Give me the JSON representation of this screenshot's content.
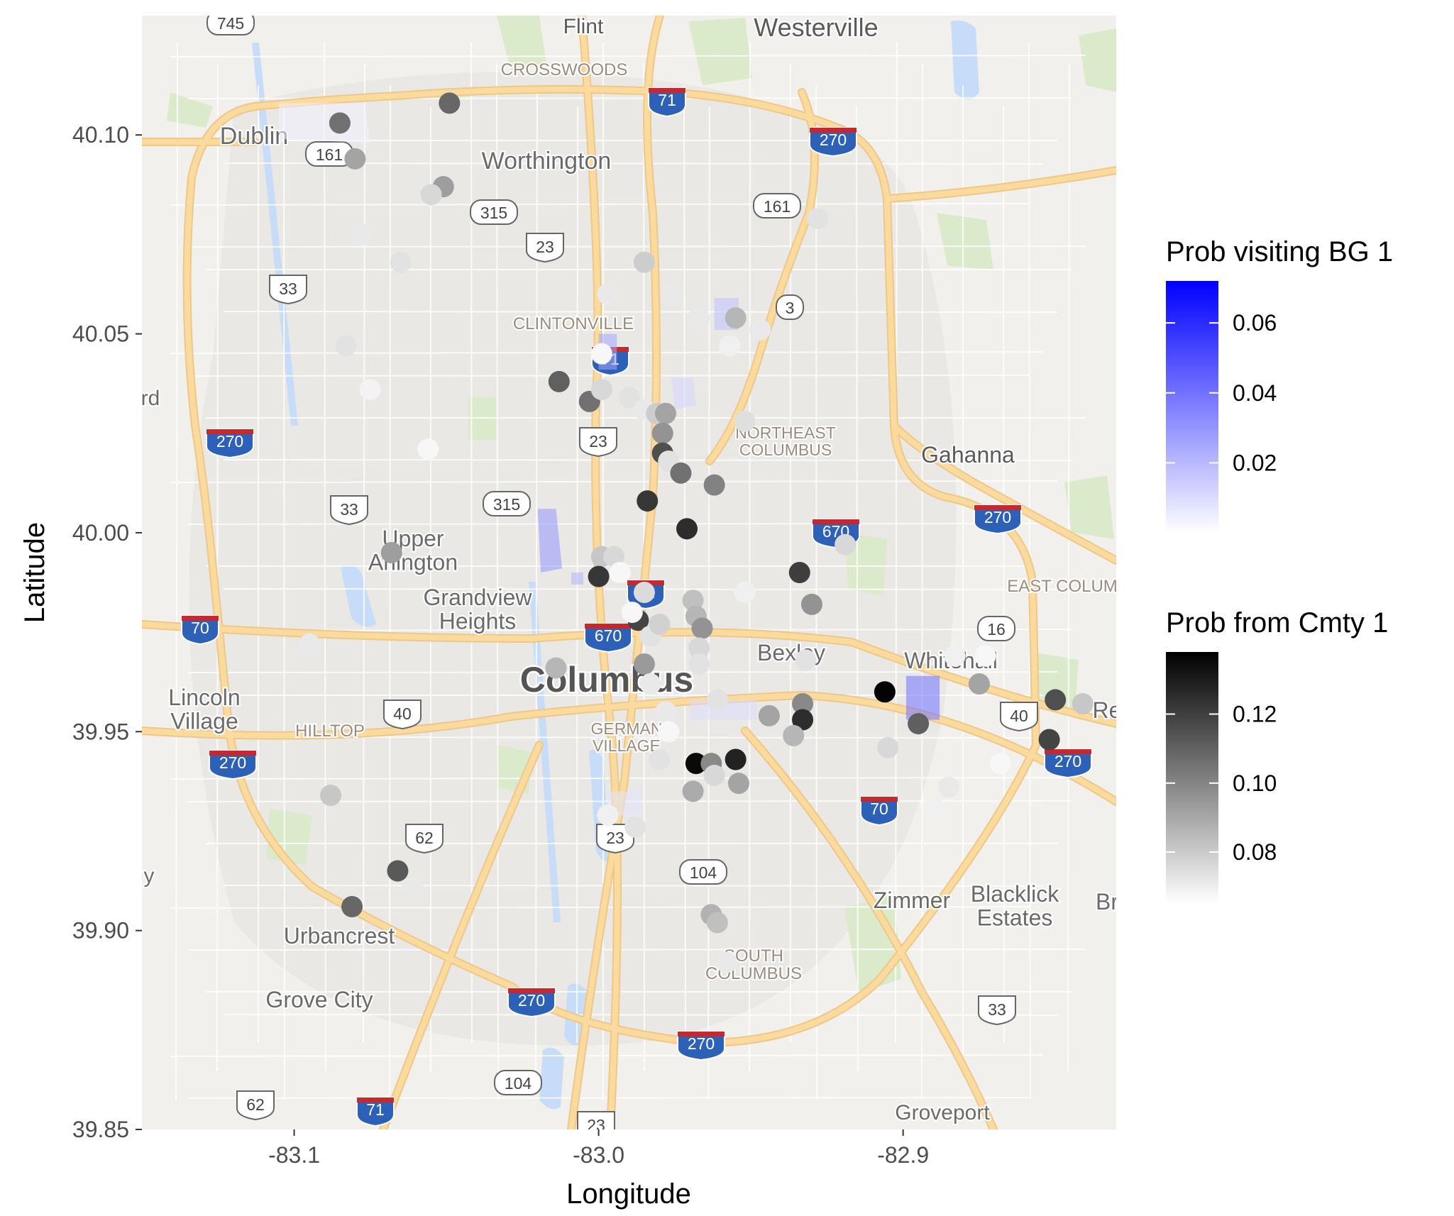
{
  "chart_data": {
    "type": "scatter",
    "basemap": "Google road map of Columbus, Ohio",
    "xlabel": "Longitude",
    "ylabel": "Latitude",
    "xlim": [
      -83.15,
      -82.83
    ],
    "ylim": [
      39.85,
      40.13
    ],
    "x_ticks": [
      {
        "value": -83.1,
        "label": "-83.1"
      },
      {
        "value": -83.0,
        "label": "-83.0"
      },
      {
        "value": -82.9,
        "label": "-82.9"
      }
    ],
    "y_ticks": [
      {
        "value": 39.85,
        "label": "39.85"
      },
      {
        "value": 39.9,
        "label": "39.90"
      },
      {
        "value": 39.95,
        "label": "39.95"
      },
      {
        "value": 40.0,
        "label": "40.00"
      },
      {
        "value": 40.05,
        "label": "40.05"
      },
      {
        "value": 40.1,
        "label": "40.10"
      }
    ],
    "grid": false,
    "legends": [
      {
        "title": "Prob visiting BG 1",
        "low_color": "#ffffff",
        "high_color": "#0000ff",
        "range": [
          0.0,
          0.072
        ],
        "ticks": [
          {
            "value": 0.02,
            "label": "0.02"
          },
          {
            "value": 0.04,
            "label": "0.04"
          },
          {
            "value": 0.06,
            "label": "0.06"
          }
        ]
      },
      {
        "title": "Prob from Cmty 1",
        "low_color": "#ffffff",
        "high_color": "#000000",
        "range": [
          0.065,
          0.138
        ],
        "ticks": [
          {
            "value": 0.08,
            "label": "0.08"
          },
          {
            "value": 0.1,
            "label": "0.10"
          },
          {
            "value": 0.12,
            "label": "0.12"
          }
        ]
      }
    ],
    "block_groups": [
      {
        "name": "bg-near-dublin",
        "lon": -83.085,
        "lat": 40.104,
        "prob": 0.004
      },
      {
        "name": "bg-west-olentangy",
        "lon": -83.016,
        "lat": 39.995,
        "prob": 0.03
      },
      {
        "name": "bg-west-olentangy-small",
        "lon": -83.007,
        "lat": 39.989,
        "prob": 0.022
      },
      {
        "name": "bg-clintonville",
        "lon": -82.997,
        "lat": 40.046,
        "prob": 0.025
      },
      {
        "name": "bg-north",
        "lon": -82.972,
        "lat": 40.034,
        "prob": 0.012
      },
      {
        "name": "bg-northeast",
        "lon": -82.958,
        "lat": 40.055,
        "prob": 0.018
      },
      {
        "name": "bg-whitehall",
        "lon": -82.893,
        "lat": 39.959,
        "prob": 0.04
      },
      {
        "name": "bg-downtown-east",
        "lon": -82.958,
        "lat": 39.956,
        "prob": 0.01
      },
      {
        "name": "bg-south-german",
        "lon": -82.991,
        "lat": 39.932,
        "prob": 0.008
      }
    ],
    "points": [
      {
        "lon": -83.085,
        "lat": 40.103,
        "prob": 0.105
      },
      {
        "lon": -83.08,
        "lat": 40.094,
        "prob": 0.09
      },
      {
        "lon": -83.049,
        "lat": 40.108,
        "prob": 0.108
      },
      {
        "lon": -83.051,
        "lat": 40.087,
        "prob": 0.092
      },
      {
        "lon": -83.055,
        "lat": 40.085,
        "prob": 0.075
      },
      {
        "lon": -82.997,
        "lat": 40.06,
        "prob": 0.07
      },
      {
        "lon": -82.985,
        "lat": 40.068,
        "prob": 0.078
      },
      {
        "lon": -82.967,
        "lat": 40.054,
        "prob": 0.07
      },
      {
        "lon": -82.955,
        "lat": 40.054,
        "prob": 0.085
      },
      {
        "lon": -82.999,
        "lat": 40.045,
        "prob": 0.066
      },
      {
        "lon": -83.013,
        "lat": 40.038,
        "prob": 0.11
      },
      {
        "lon": -83.003,
        "lat": 40.033,
        "prob": 0.105
      },
      {
        "lon": -82.999,
        "lat": 40.036,
        "prob": 0.075
      },
      {
        "lon": -82.99,
        "lat": 40.034,
        "prob": 0.072
      },
      {
        "lon": -82.985,
        "lat": 40.031,
        "prob": 0.07
      },
      {
        "lon": -82.981,
        "lat": 40.03,
        "prob": 0.078
      },
      {
        "lon": -82.978,
        "lat": 40.03,
        "prob": 0.09
      },
      {
        "lon": -82.979,
        "lat": 40.025,
        "prob": 0.095
      },
      {
        "lon": -82.979,
        "lat": 40.02,
        "prob": 0.115
      },
      {
        "lon": -82.977,
        "lat": 40.018,
        "prob": 0.072
      },
      {
        "lon": -82.973,
        "lat": 40.015,
        "prob": 0.105
      },
      {
        "lon": -82.962,
        "lat": 40.012,
        "prob": 0.1
      },
      {
        "lon": -82.984,
        "lat": 40.008,
        "prob": 0.122
      },
      {
        "lon": -82.971,
        "lat": 40.001,
        "prob": 0.125
      },
      {
        "lon": -82.952,
        "lat": 40.028,
        "prob": 0.073
      },
      {
        "lon": -83.078,
        "lat": 40.075,
        "prob": 0.07
      },
      {
        "lon": -83.065,
        "lat": 40.068,
        "prob": 0.072
      },
      {
        "lon": -83.083,
        "lat": 40.047,
        "prob": 0.072
      },
      {
        "lon": -83.075,
        "lat": 40.036,
        "prob": 0.067
      },
      {
        "lon": -82.976,
        "lat": 40.06,
        "prob": 0.07
      },
      {
        "lon": -82.928,
        "lat": 40.079,
        "prob": 0.072
      },
      {
        "lon": -82.947,
        "lat": 40.051,
        "prob": 0.07
      },
      {
        "lon": -82.957,
        "lat": 40.047,
        "prob": 0.068
      },
      {
        "lon": -82.999,
        "lat": 39.994,
        "prob": 0.08
      },
      {
        "lon": -82.995,
        "lat": 39.994,
        "prob": 0.075
      },
      {
        "lon": -83.0,
        "lat": 39.989,
        "prob": 0.122
      },
      {
        "lon": -82.993,
        "lat": 39.99,
        "prob": 0.066
      },
      {
        "lon": -82.985,
        "lat": 39.985,
        "prob": 0.074
      },
      {
        "lon": -82.987,
        "lat": 39.978,
        "prob": 0.118
      },
      {
        "lon": -82.989,
        "lat": 39.98,
        "prob": 0.066
      },
      {
        "lon": -82.983,
        "lat": 39.974,
        "prob": 0.072
      },
      {
        "lon": -82.98,
        "lat": 39.977,
        "prob": 0.077
      },
      {
        "lon": -82.969,
        "lat": 39.983,
        "prob": 0.082
      },
      {
        "lon": -82.968,
        "lat": 39.979,
        "prob": 0.085
      },
      {
        "lon": -82.966,
        "lat": 39.976,
        "prob": 0.095
      },
      {
        "lon": -82.967,
        "lat": 39.971,
        "prob": 0.075
      },
      {
        "lon": -82.967,
        "lat": 39.967,
        "prob": 0.072
      },
      {
        "lon": -82.985,
        "lat": 39.967,
        "prob": 0.093
      },
      {
        "lon": -83.014,
        "lat": 39.966,
        "prob": 0.085
      },
      {
        "lon": -82.952,
        "lat": 39.985,
        "prob": 0.068
      },
      {
        "lon": -82.934,
        "lat": 39.99,
        "prob": 0.12
      },
      {
        "lon": -82.93,
        "lat": 39.982,
        "prob": 0.095
      },
      {
        "lon": -82.919,
        "lat": 39.997,
        "prob": 0.075
      },
      {
        "lon": -82.983,
        "lat": 39.962,
        "prob": 0.07
      },
      {
        "lon": -82.978,
        "lat": 39.955,
        "prob": 0.07
      },
      {
        "lon": -82.977,
        "lat": 39.95,
        "prob": 0.066
      },
      {
        "lon": -82.961,
        "lat": 39.958,
        "prob": 0.072
      },
      {
        "lon": -82.944,
        "lat": 39.954,
        "prob": 0.09
      },
      {
        "lon": -82.933,
        "lat": 39.957,
        "prob": 0.098
      },
      {
        "lon": -82.933,
        "lat": 39.953,
        "prob": 0.125
      },
      {
        "lon": -82.936,
        "lat": 39.949,
        "prob": 0.085
      },
      {
        "lon": -82.932,
        "lat": 39.968,
        "prob": 0.072
      },
      {
        "lon": -82.906,
        "lat": 39.96,
        "prob": 0.137
      },
      {
        "lon": -82.895,
        "lat": 39.952,
        "prob": 0.11
      },
      {
        "lon": -82.905,
        "lat": 39.946,
        "prob": 0.075
      },
      {
        "lon": -82.883,
        "lat": 39.969,
        "prob": 0.068
      },
      {
        "lon": -82.875,
        "lat": 39.962,
        "prob": 0.09
      },
      {
        "lon": -82.873,
        "lat": 39.969,
        "prob": 0.066
      },
      {
        "lon": -82.85,
        "lat": 39.958,
        "prob": 0.115
      },
      {
        "lon": -82.841,
        "lat": 39.957,
        "prob": 0.08
      },
      {
        "lon": -82.852,
        "lat": 39.948,
        "prob": 0.118
      },
      {
        "lon": -82.868,
        "lat": 39.942,
        "prob": 0.066
      },
      {
        "lon": -82.885,
        "lat": 39.936,
        "prob": 0.07
      },
      {
        "lon": -82.89,
        "lat": 39.931,
        "prob": 0.068
      },
      {
        "lon": -82.968,
        "lat": 39.942,
        "prob": 0.135
      },
      {
        "lon": -82.963,
        "lat": 39.942,
        "prob": 0.098
      },
      {
        "lon": -82.955,
        "lat": 39.943,
        "prob": 0.128
      },
      {
        "lon": -82.962,
        "lat": 39.939,
        "prob": 0.075
      },
      {
        "lon": -82.969,
        "lat": 39.935,
        "prob": 0.088
      },
      {
        "lon": -82.954,
        "lat": 39.937,
        "prob": 0.09
      },
      {
        "lon": -82.963,
        "lat": 39.904,
        "prob": 0.086
      },
      {
        "lon": -82.961,
        "lat": 39.902,
        "prob": 0.082
      },
      {
        "lon": -82.958,
        "lat": 39.892,
        "prob": 0.07
      },
      {
        "lon": -83.095,
        "lat": 39.972,
        "prob": 0.07
      },
      {
        "lon": -83.088,
        "lat": 39.934,
        "prob": 0.08
      },
      {
        "lon": -83.066,
        "lat": 39.915,
        "prob": 0.112
      },
      {
        "lon": -83.061,
        "lat": 39.911,
        "prob": 0.07
      },
      {
        "lon": -83.081,
        "lat": 39.906,
        "prob": 0.108
      },
      {
        "lon": -83.068,
        "lat": 39.995,
        "prob": 0.092
      },
      {
        "lon": -83.056,
        "lat": 40.021,
        "prob": 0.066
      },
      {
        "lon": -82.988,
        "lat": 39.926,
        "prob": 0.072
      },
      {
        "lon": -82.997,
        "lat": 39.929,
        "prob": 0.068
      },
      {
        "lon": -82.98,
        "lat": 39.943,
        "prob": 0.072
      }
    ]
  },
  "map": {
    "place_labels": [
      {
        "id": "flint",
        "text": "Flint"
      },
      {
        "id": "westerville",
        "text": "Westerville"
      },
      {
        "id": "crosswoods",
        "text": "CROSSWOODS"
      },
      {
        "id": "dublin",
        "text": "Dublin"
      },
      {
        "id": "worthington",
        "text": "Worthington"
      },
      {
        "id": "clintonville",
        "text": "CLINTONVILLE"
      },
      {
        "id": "northeast-columbus",
        "text": "NORTHEAST\nCOLUMBUS"
      },
      {
        "id": "gahanna",
        "text": "Gahanna"
      },
      {
        "id": "upper-arlington",
        "text": "Upper\nArlington"
      },
      {
        "id": "grandview-heights",
        "text": "Grandview\nHeights"
      },
      {
        "id": "east-columbus",
        "text": "EAST COLUM"
      },
      {
        "id": "bexley",
        "text": "Bexley"
      },
      {
        "id": "whitehall",
        "text": "Whitehall"
      },
      {
        "id": "columbus",
        "text": "Columbus"
      },
      {
        "id": "lincoln-village",
        "text": "Lincoln\nVillage"
      },
      {
        "id": "hilltop",
        "text": "HILLTOP"
      },
      {
        "id": "german-village",
        "text": "GERMAN\nVILLAGE"
      },
      {
        "id": "re",
        "text": "Re"
      },
      {
        "id": "zimmer",
        "text": "Zimmer"
      },
      {
        "id": "blacklick-estates",
        "text": "Blacklick\nEstates"
      },
      {
        "id": "br",
        "text": "Br"
      },
      {
        "id": "urbancrest",
        "text": "Urbancrest"
      },
      {
        "id": "south-columbus",
        "text": "SOUTH\nCOLUMBUS"
      },
      {
        "id": "grove-city",
        "text": "Grove City"
      },
      {
        "id": "groveport",
        "text": "Groveport"
      },
      {
        "id": "rd",
        "text": "rd"
      },
      {
        "id": "y",
        "text": "y"
      }
    ],
    "route_shields": [
      {
        "id": "r745",
        "text": "745",
        "kind": "state"
      },
      {
        "id": "r71n",
        "text": "71",
        "kind": "interstate"
      },
      {
        "id": "r270ne",
        "text": "270",
        "kind": "interstate"
      },
      {
        "id": "r161a",
        "text": "161",
        "kind": "state"
      },
      {
        "id": "r161b",
        "text": "161",
        "kind": "state"
      },
      {
        "id": "r315a",
        "text": "315",
        "kind": "state"
      },
      {
        "id": "r23a",
        "text": "23",
        "kind": "us"
      },
      {
        "id": "r33a",
        "text": "33",
        "kind": "us"
      },
      {
        "id": "r3",
        "text": "3",
        "kind": "state"
      },
      {
        "id": "r71c",
        "text": "71",
        "kind": "interstate"
      },
      {
        "id": "r23b",
        "text": "23",
        "kind": "us"
      },
      {
        "id": "r270w",
        "text": "270",
        "kind": "interstate"
      },
      {
        "id": "r33b",
        "text": "33",
        "kind": "us"
      },
      {
        "id": "r315b",
        "text": "315",
        "kind": "state"
      },
      {
        "id": "r670a",
        "text": "670",
        "kind": "interstate"
      },
      {
        "id": "r270e",
        "text": "270",
        "kind": "interstate"
      },
      {
        "id": "r71d",
        "text": "71",
        "kind": "interstate"
      },
      {
        "id": "r70w",
        "text": "70",
        "kind": "interstate"
      },
      {
        "id": "r670b",
        "text": "670",
        "kind": "interstate"
      },
      {
        "id": "r16",
        "text": "16",
        "kind": "state"
      },
      {
        "id": "r40a",
        "text": "40",
        "kind": "us"
      },
      {
        "id": "r40b",
        "text": "40",
        "kind": "us"
      },
      {
        "id": "r270sw",
        "text": "270",
        "kind": "interstate"
      },
      {
        "id": "r270se",
        "text": "270",
        "kind": "interstate"
      },
      {
        "id": "r70e",
        "text": "70",
        "kind": "interstate"
      },
      {
        "id": "r62a",
        "text": "62",
        "kind": "us"
      },
      {
        "id": "r23c",
        "text": "23",
        "kind": "us"
      },
      {
        "id": "r104a",
        "text": "104",
        "kind": "state"
      },
      {
        "id": "r270s",
        "text": "270",
        "kind": "interstate"
      },
      {
        "id": "r270s2",
        "text": "270",
        "kind": "interstate"
      },
      {
        "id": "r33c",
        "text": "33",
        "kind": "us"
      },
      {
        "id": "r104b",
        "text": "104",
        "kind": "state"
      },
      {
        "id": "r62b",
        "text": "62",
        "kind": "us"
      },
      {
        "id": "r71s",
        "text": "71",
        "kind": "interstate"
      },
      {
        "id": "r23d",
        "text": "23",
        "kind": "us"
      }
    ]
  },
  "colors": {
    "map_background": "#ebe9e4",
    "urban_area": "#dcdad6",
    "street": "#ffffff",
    "highway": "#f7c769",
    "highway_outline": "#e5a94a",
    "park": "#c8dfb0",
    "water": "#a8c9f5",
    "label": "#6e6e6e",
    "district_label": "#9c8b7b",
    "interstate_blue": "#2d61b7",
    "interstate_red": "#c8282d",
    "veil": "rgba(255,255,255,0.35)"
  }
}
